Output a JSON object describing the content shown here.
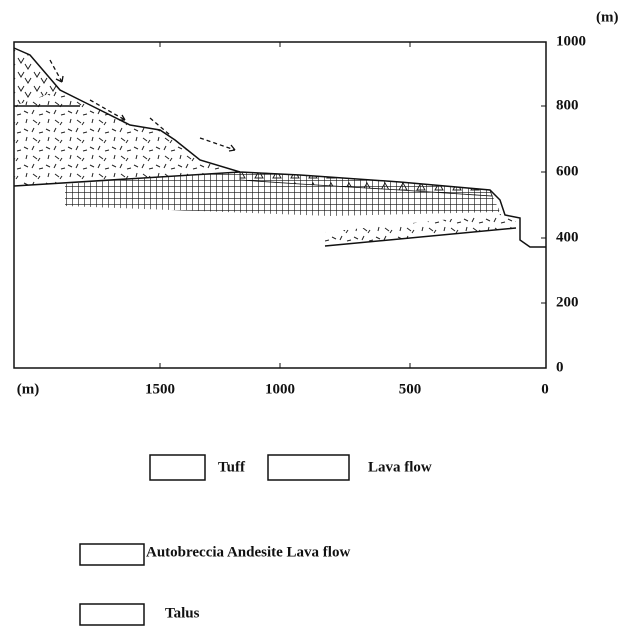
{
  "axes": {
    "right_unit": "(m)",
    "right_ticks": [
      "1000",
      "800",
      "600",
      "400",
      "200",
      "0"
    ],
    "bottom_unit": "(m)",
    "bottom_ticks": [
      "1500",
      "1000",
      "500",
      "0"
    ]
  },
  "legend": [
    {
      "label": "Tuff"
    },
    {
      "label": "Lava flow"
    },
    {
      "label": "Autobreccia Andesite Lava flow"
    },
    {
      "label": "Talus"
    }
  ]
}
